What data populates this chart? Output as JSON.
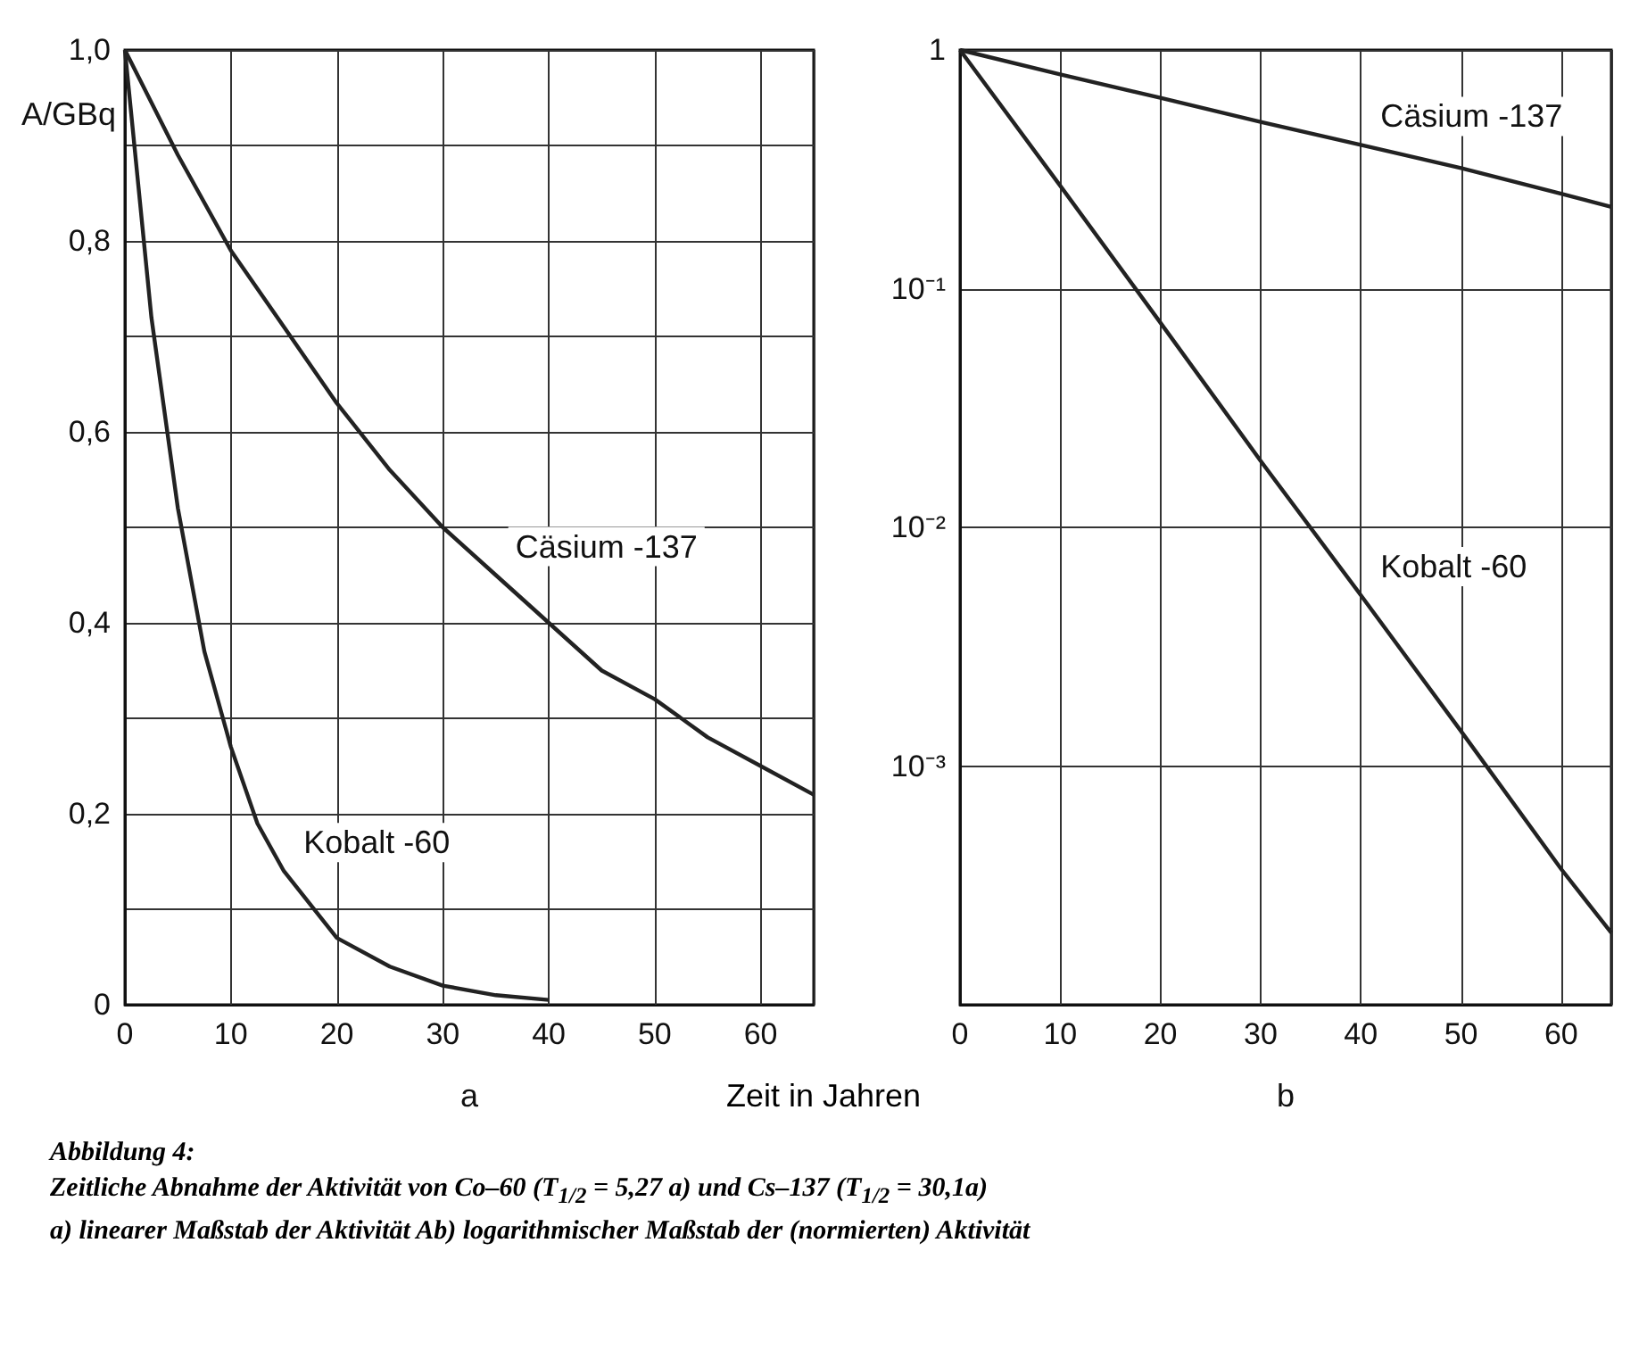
{
  "chart_data": [
    {
      "type": "line",
      "xlabel": "a",
      "ylabel": "A/GBq",
      "marker": "none",
      "grid": true,
      "xlim": [
        0,
        65
      ],
      "xticks": [
        0,
        10,
        20,
        30,
        40,
        50,
        60
      ],
      "ylim": [
        0,
        1
      ],
      "yticks": [
        {
          "value": 0,
          "label": "0"
        },
        {
          "value": 0.1,
          "label": null
        },
        {
          "value": 0.2,
          "label": "0,2"
        },
        {
          "value": 0.3,
          "label": null
        },
        {
          "value": 0.4,
          "label": "0,4"
        },
        {
          "value": 0.5,
          "label": null
        },
        {
          "value": 0.6,
          "label": "0,6"
        },
        {
          "value": 0.7,
          "label": null
        },
        {
          "value": 0.8,
          "label": "0,8"
        },
        {
          "value": 0.9,
          "label": null
        },
        {
          "value": 1,
          "label": "1,0"
        }
      ],
      "series": [
        {
          "name": "Cäsium -137",
          "color": "#222222",
          "x": [
            0,
            5,
            10,
            15,
            20,
            25,
            30,
            35,
            40,
            45,
            50,
            55,
            60,
            65
          ],
          "values": [
            1,
            0.89,
            0.79,
            0.71,
            0.63,
            0.56,
            0.5,
            0.45,
            0.4,
            0.35,
            0.32,
            0.28,
            0.25,
            0.22
          ]
        },
        {
          "name": "Kobalt -60",
          "color": "#222222",
          "x": [
            0,
            2.5,
            5,
            7.5,
            10,
            12.5,
            15,
            20,
            25,
            30,
            35,
            40
          ],
          "values": [
            1,
            0.72,
            0.52,
            0.37,
            0.27,
            0.19,
            0.14,
            0.07,
            0.04,
            0.02,
            0.01,
            0.005
          ]
        }
      ],
      "annotations": [
        "Zeit in Jahren",
        "Abbildung 4:",
        "Zeitliche Abnahme der Aktivität von Co–60 (T$_{1/2}$ = 5,27 a) und Cs–137 (T$_{1/2}$ = 30,1a)",
        "a) linearer Maßstab der Aktivität Ab) logarithmischer Maßstab der (normierten) Aktivität"
      ]
    },
    {
      "type": "line",
      "xlabel": "b",
      "marker": "none",
      "grid": true,
      "log": "y",
      "xlim": [
        0,
        65
      ],
      "xticks": [
        0,
        10,
        20,
        30,
        40,
        50,
        60
      ],
      "ylim": [
        0.0001,
        1
      ],
      "yticks": [
        {
          "value": 0.0001,
          "label": null
        },
        {
          "value": 0.001,
          "label": "10⁻³"
        },
        {
          "value": 0.01,
          "label": "10⁻²"
        },
        {
          "value": 0.1,
          "label": "10⁻¹"
        },
        {
          "value": 1,
          "label": "1"
        }
      ],
      "series": [
        {
          "name": "Cäsium -137",
          "color": "#222222",
          "x": [
            0,
            10,
            20,
            30,
            40,
            50,
            60,
            65
          ],
          "values": [
            1,
            0.79,
            0.63,
            0.5,
            0.4,
            0.32,
            0.25,
            0.22
          ]
        },
        {
          "name": "Kobalt -60",
          "color": "#222222",
          "x": [
            0,
            10,
            20,
            30,
            40,
            50,
            60,
            65
          ],
          "values": [
            1,
            0.27,
            0.072,
            0.019,
            0.0052,
            0.0014,
            0.00037,
            0.0002
          ]
        }
      ]
    }
  ]
}
